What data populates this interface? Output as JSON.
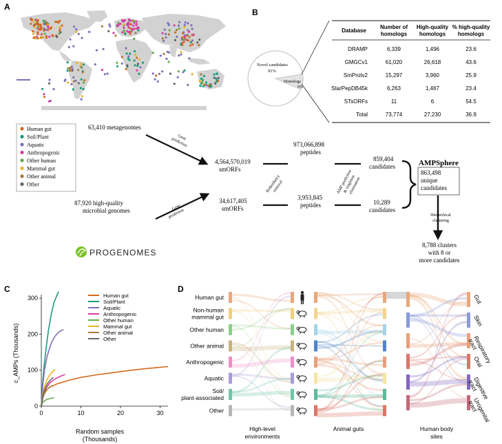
{
  "panel_labels": {
    "a": "A",
    "b": "B",
    "c": "C",
    "d": "D"
  },
  "colors": {
    "human_gut": "#d2691e",
    "soil_plant": "#1a9b7c",
    "aquatic": "#8070b8",
    "anthropogenic": "#d63fa0",
    "other_human": "#6aa84f",
    "mammal_gut": "#e6b422",
    "other_animal": "#a77a3a",
    "other": "#666666",
    "land": "#d4d4d4",
    "ocean": "#ffffff"
  },
  "legend_a": {
    "items": [
      {
        "label": "Human gut",
        "color": "#d2691e"
      },
      {
        "label": "Soil/Plant",
        "color": "#1a9b7c"
      },
      {
        "label": "Aquatic",
        "color": "#8070b8"
      },
      {
        "label": "Anthropogenic",
        "color": "#d63fa0"
      },
      {
        "label": "Other human",
        "color": "#6aa84f"
      },
      {
        "label": "Mammal gut",
        "color": "#e6b422"
      },
      {
        "label": "Other animal",
        "color": "#a77a3a"
      },
      {
        "label": "Other",
        "color": "#666666"
      }
    ]
  },
  "pie": {
    "novel_label": "Novel candidates",
    "novel_pct": "91%",
    "novel_value": 91,
    "homologs_label": "Homologs",
    "homologs_pct": "9%",
    "homologs_value": 9
  },
  "table": {
    "headers": [
      "Database",
      "Number of\nhomologs",
      "High-quality\nhomologs",
      "% high-quality\nhomologs"
    ],
    "rows": [
      [
        "DRAMP",
        "6,339",
        "1,496",
        "23.6"
      ],
      [
        "GMGCv1",
        "61,020",
        "26,618",
        "43.6"
      ],
      [
        "SmProtv2",
        "15,297",
        "3,960",
        "25.9"
      ],
      [
        "StarPepDB45k",
        "6,263",
        "1,467",
        "23.4"
      ],
      [
        "STsORFs",
        "11",
        "6",
        "54.5"
      ],
      [
        "Total",
        "73,774",
        "27,230",
        "36.9"
      ]
    ]
  },
  "flow": {
    "metagenomes": "63,410 metagenomes",
    "genomes_line1": "87,920 high-quality",
    "genomes_line2": "microbial genomes",
    "gene_prediction_1": "Gene",
    "gene_prediction_2": "prediction",
    "smorfs_meta_n": "4,564,570,019",
    "smorfs_meta_lbl": "smORFs",
    "smorfs_gen_n": "34,617,405",
    "smorfs_gen_lbl": "smORFs",
    "redundancy_1": "Redundancy",
    "redundancy_2": "removal",
    "peptides_meta_n": "973,066,898",
    "peptides_meta_lbl": "peptides",
    "peptides_gen_n": "3,953,845",
    "peptides_gen_lbl": "peptides",
    "amp_pred_1": "AMP prediction",
    "amp_pred_2": "& singleton",
    "amp_pred_3": "elimination",
    "cand_meta_n": "859,404",
    "cand_meta_lbl": "candidates",
    "cand_gen_n": "10,289",
    "cand_gen_lbl": "candidates",
    "ampsphere_title": "AMPSphere",
    "ampsphere_n": "863,498",
    "ampsphere_l2": "unique",
    "ampsphere_l3": "candidates",
    "hier_1": "Hierarchical",
    "hier_2": "clustering",
    "clusters_1": "8,788 clusters",
    "clusters_2": "with 8 or",
    "clusters_3": "more candidates",
    "progenomes_logo": "PROGENOMES"
  },
  "chart_data": {
    "type": "line",
    "xlabel_line1": "Random samples",
    "xlabel_line2": "(Thousands)",
    "ylabel": "c_AMPs (Thousands)",
    "xlim": [
      0,
      32
    ],
    "ylim": [
      0,
      310
    ],
    "xticks": [
      0,
      10,
      20,
      30
    ],
    "yticks": [
      0,
      100,
      200,
      300
    ],
    "legend_position": "top-right",
    "series": [
      {
        "name": "Human gut",
        "color": "#d2691e",
        "points": [
          [
            0,
            0
          ],
          [
            0.5,
            30
          ],
          [
            1,
            42
          ],
          [
            2,
            52
          ],
          [
            4,
            62
          ],
          [
            7,
            72
          ],
          [
            10,
            80
          ],
          [
            14,
            87
          ],
          [
            18,
            93
          ],
          [
            22,
            99
          ],
          [
            26,
            104
          ],
          [
            30,
            108
          ],
          [
            32,
            110
          ]
        ]
      },
      {
        "name": "Soil/Plant",
        "color": "#1a9b7c",
        "points": [
          [
            0,
            0
          ],
          [
            0.3,
            60
          ],
          [
            0.7,
            110
          ],
          [
            1.2,
            160
          ],
          [
            1.8,
            210
          ],
          [
            2.5,
            255
          ],
          [
            3.2,
            288
          ],
          [
            4,
            310
          ],
          [
            4.4,
            318
          ]
        ]
      },
      {
        "name": "Aquatic",
        "color": "#8070b8",
        "points": [
          [
            0,
            0
          ],
          [
            0.3,
            50
          ],
          [
            0.8,
            100
          ],
          [
            1.5,
            140
          ],
          [
            2.5,
            175
          ],
          [
            3.5,
            195
          ],
          [
            4.5,
            207
          ],
          [
            5.6,
            213
          ]
        ]
      },
      {
        "name": "Anthropogenic",
        "color": "#d63fa0",
        "points": [
          [
            0,
            0
          ],
          [
            0.5,
            30
          ],
          [
            1.2,
            50
          ],
          [
            2.2,
            65
          ],
          [
            3.5,
            76
          ],
          [
            4.8,
            83
          ],
          [
            6,
            88
          ]
        ]
      },
      {
        "name": "Other human",
        "color": "#6aa84f",
        "points": [
          [
            0,
            0
          ],
          [
            0.3,
            10
          ],
          [
            0.8,
            15
          ],
          [
            1.5,
            19
          ],
          [
            2.5,
            22
          ],
          [
            3.2,
            23
          ]
        ]
      },
      {
        "name": "Mammal gut",
        "color": "#e6b422",
        "points": [
          [
            0,
            0
          ],
          [
            0.3,
            30
          ],
          [
            0.8,
            55
          ],
          [
            1.5,
            75
          ],
          [
            2.2,
            88
          ],
          [
            3,
            98
          ],
          [
            3.5,
            102
          ]
        ]
      },
      {
        "name": "Other animal",
        "color": "#a77a3a",
        "points": [
          [
            0,
            0
          ],
          [
            0.3,
            20
          ],
          [
            0.8,
            35
          ],
          [
            1.5,
            47
          ],
          [
            2.3,
            54
          ],
          [
            3,
            58
          ]
        ]
      },
      {
        "name": "Other",
        "color": "#666666",
        "points": [
          [
            0,
            0
          ],
          [
            0.3,
            25
          ],
          [
            0.8,
            45
          ],
          [
            1.5,
            62
          ],
          [
            2.3,
            73
          ],
          [
            3,
            80
          ]
        ]
      }
    ]
  },
  "alluvial": {
    "environments": [
      "Human gut",
      "Non-human\nmammal gut",
      "Other human",
      "Other animal",
      "Anthropogenic",
      "Aquatic",
      "Soil/\nplant-associated",
      "Other"
    ],
    "env_colors": [
      "#e8a87c",
      "#f2cf7a",
      "#8ccf8a",
      "#c9b27e",
      "#f08cc9",
      "#a99bd8",
      "#6fc6a8",
      "#b5b5b5"
    ],
    "animal_colors": [
      "#e8a87c",
      "#f2d590",
      "#a7d3e8",
      "#4f86c6",
      "#e8a07a",
      "#f5e6a8",
      "#5fb89a",
      "#d9766a"
    ],
    "body_sites": [
      "Gut",
      "Skin",
      "Respiratory\ntract",
      "Oral",
      "Digestive\ntract",
      "Urogenital\ntract"
    ],
    "body_colors": [
      "#e8a87c",
      "#8a9bd8",
      "#e8a07a",
      "#d9766a",
      "#8266c0",
      "#c26a7a"
    ],
    "axis_labels": [
      "High-level\nenvironments",
      "Animal guts",
      "Human body\nsites"
    ]
  }
}
